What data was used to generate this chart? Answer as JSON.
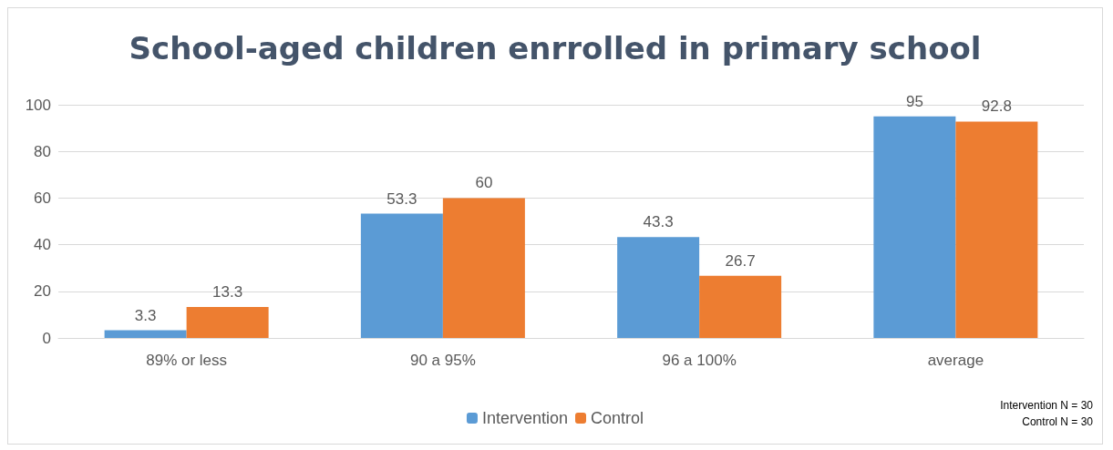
{
  "chart_data": {
    "type": "bar",
    "title": "School-aged children enrrolled in primary school",
    "categories": [
      "89% or less",
      "90 a 95%",
      "96 a 100%",
      "average"
    ],
    "series": [
      {
        "name": "Intervention",
        "color": "#5b9bd5",
        "values": [
          3.3,
          53.3,
          43.3,
          95
        ]
      },
      {
        "name": "Control",
        "color": "#ed7d31",
        "values": [
          13.3,
          60,
          26.7,
          92.8
        ]
      }
    ],
    "ylim": [
      0,
      100
    ],
    "yticks": [
      0,
      20,
      40,
      60,
      80,
      100
    ],
    "grid": "y",
    "legend": "bottom",
    "data_labels": true,
    "annotations": [
      "Intervention N = 30",
      "Control N = 30"
    ]
  }
}
